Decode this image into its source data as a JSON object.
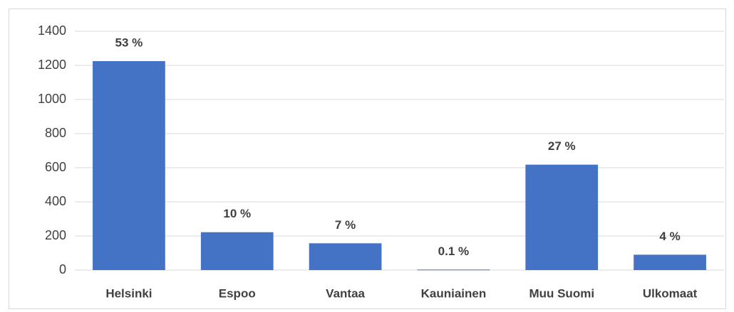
{
  "chart_data": {
    "type": "bar",
    "categories": [
      "Helsinki",
      "Espoo",
      "Vantaa",
      "Kauniainen",
      "Muu Suomi",
      "Ulkomaat"
    ],
    "values": [
      1225,
      222,
      157,
      3,
      618,
      90
    ],
    "share_labels": [
      "53 %",
      "10 %",
      "7 %",
      "0.1 %",
      "27 %",
      "4 %"
    ],
    "color": "#4472c4",
    "ylim": [
      0,
      1400
    ],
    "yticks": [
      0,
      200,
      400,
      600,
      800,
      1000,
      1200,
      1400
    ],
    "grid": true
  }
}
